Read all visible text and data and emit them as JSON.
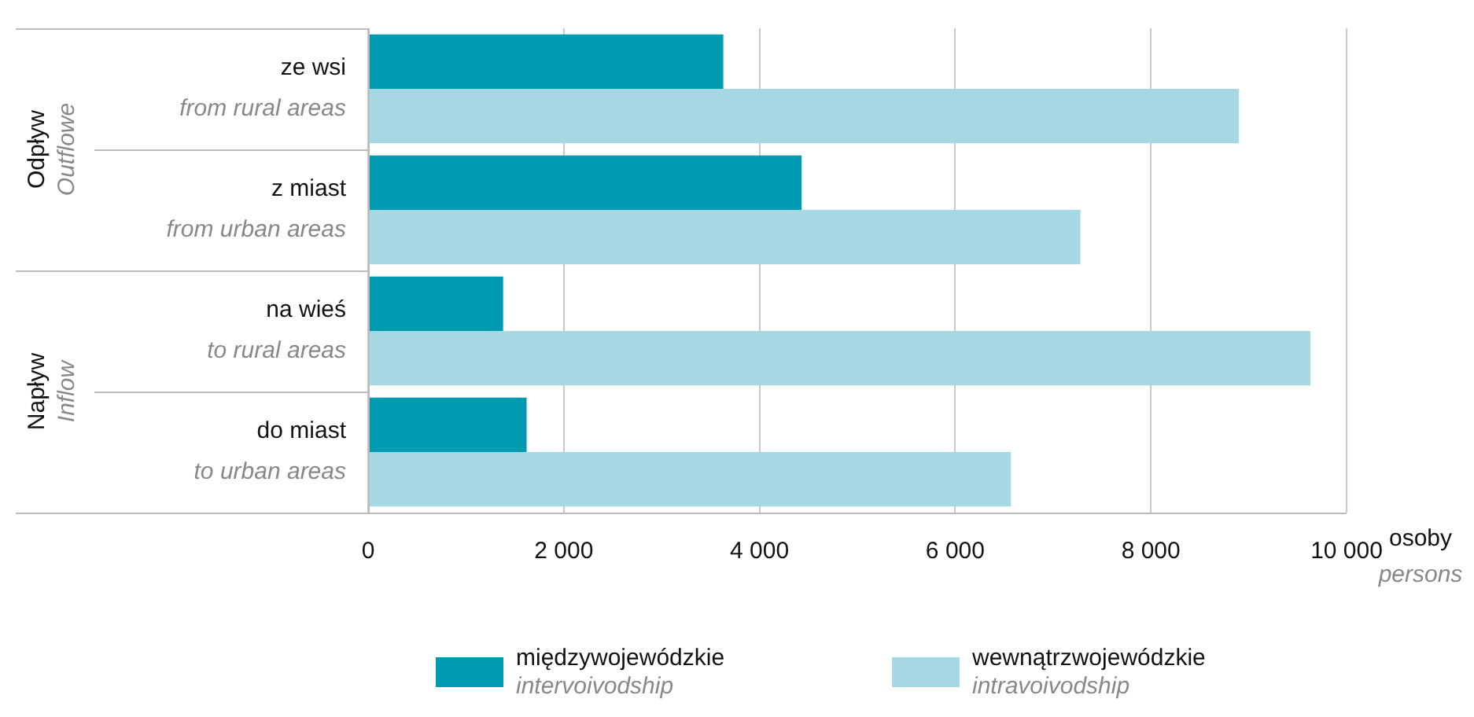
{
  "chart_data": {
    "type": "bar",
    "orientation": "horizontal",
    "categories": [
      "ze wsi\nfrom rural areas",
      "z miast\nfrom urban areas",
      "na wieś\nto rural areas",
      "do miast\nto urban areas"
    ],
    "series": [
      {
        "name": "międzywojewódzkie\nintervoivodship",
        "color": "#009ab1",
        "values": [
          3630,
          4430,
          1380,
          1620
        ]
      },
      {
        "name": "wewnątrzwojewódzkie\nintravoivodship",
        "color": "#a5d8e2",
        "values": [
          8900,
          7280,
          9630,
          6570
        ]
      }
    ],
    "xlim": [
      0,
      10000
    ],
    "xticks": [
      0,
      {
        "value": 2000,
        "label": "2 000"
      },
      {
        "value": 4000,
        "label": "4 000"
      },
      {
        "value": 6000,
        "label": "6 000"
      },
      {
        "value": 8000,
        "label": "8 000"
      },
      {
        "value": 10000,
        "label": "10 000"
      }
    ],
    "xlabel": "osoby\npersons",
    "annotations": [
      "Odpływ\nOutflowe",
      "Napływ\nInflow"
    ],
    "grid": "x",
    "legend": "bottom"
  }
}
